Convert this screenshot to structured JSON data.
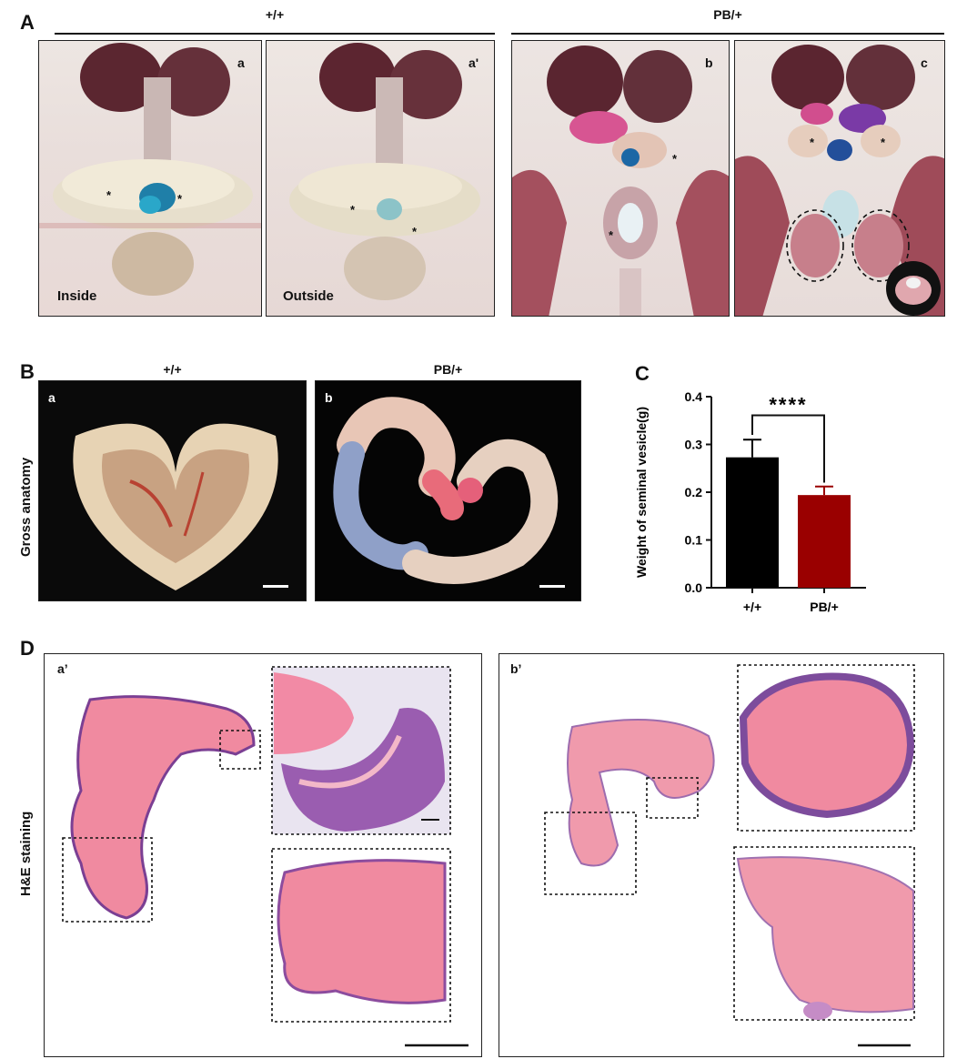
{
  "panelA": {
    "letter": "A",
    "group_left": "+/+",
    "group_right": "PB/+",
    "photos": [
      {
        "letter": "a",
        "caption": "Inside"
      },
      {
        "letter": "a'",
        "caption": "Outside"
      },
      {
        "letter": "b",
        "caption": ""
      },
      {
        "letter": "c",
        "caption": ""
      }
    ],
    "asterisk": "*"
  },
  "panelB": {
    "letter": "B",
    "row_label": "Gross anatomy",
    "photos": [
      {
        "letter": "a",
        "header": "+/+"
      },
      {
        "letter": "b",
        "header": "PB/+"
      }
    ]
  },
  "panelC": {
    "letter": "C",
    "significance": "****"
  },
  "panelD": {
    "letter": "D",
    "row_label": "H&E staining",
    "boxes": [
      {
        "letter": "a’"
      },
      {
        "letter": "b’"
      }
    ]
  },
  "chart_data": {
    "type": "bar",
    "categories": [
      "+/+",
      "PB/+"
    ],
    "values": [
      0.273,
      0.194
    ],
    "errors": [
      0.037,
      0.018
    ],
    "bar_colors": [
      "#000000",
      "#9a0000"
    ],
    "xlabel": "",
    "ylabel": "Weight of seminal vesicle(g)",
    "ylim": [
      0,
      0.4
    ],
    "yticks": [
      "0.0",
      "0.1",
      "0.2",
      "0.3",
      "0.4"
    ],
    "grid": false,
    "significance_label": "****"
  }
}
